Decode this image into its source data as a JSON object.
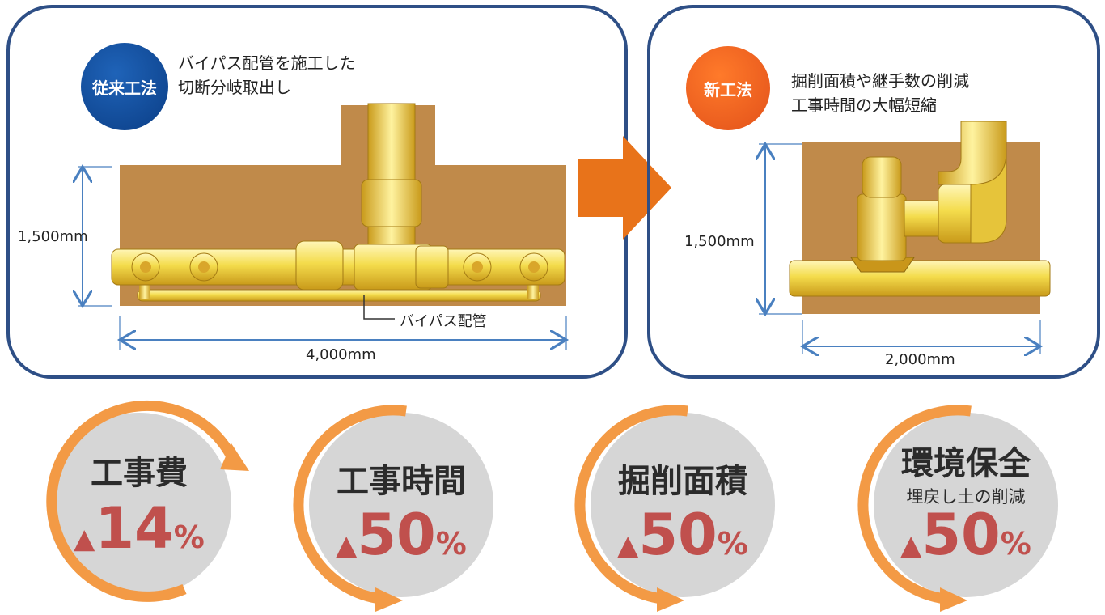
{
  "colors": {
    "panel_border": "#2e4f86",
    "soil": "#c08a4a",
    "pipe": "#f3d84a",
    "conventional_badge": "#0b3e86",
    "new_badge": "#ff7a2a",
    "arrow": "#e8731a",
    "ring": "#f39a45",
    "stat_value": "#c0504d",
    "dimension_line": "#4a80c0"
  },
  "conventional": {
    "badge": "従来工法",
    "caption_line1": "バイパス配管を施工した",
    "caption_line2": "切断分岐取出し",
    "height_dim": "1,500mm",
    "width_dim": "4,000mm",
    "bypass_label": "バイパス配管"
  },
  "new_method": {
    "badge": "新工法",
    "caption_line1": "掘削面積や継手数の削減",
    "caption_line2": "工事時間の大幅短縮",
    "height_dim": "1,500mm",
    "width_dim": "2,000mm"
  },
  "stats": [
    {
      "title": "工事費",
      "subtitle": "",
      "marker": "▲",
      "value": "14",
      "unit": "%"
    },
    {
      "title": "工事時間",
      "subtitle": "",
      "marker": "▲",
      "value": "50",
      "unit": "%"
    },
    {
      "title": "掘削面積",
      "subtitle": "",
      "marker": "▲",
      "value": "50",
      "unit": "%"
    },
    {
      "title": "環境保全",
      "subtitle": "埋戻し土の削減",
      "marker": "▲",
      "value": "50",
      "unit": "%"
    }
  ]
}
